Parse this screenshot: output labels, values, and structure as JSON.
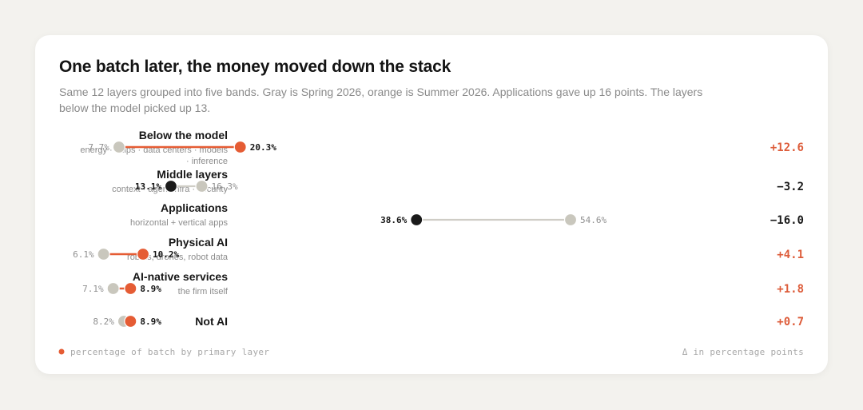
{
  "title": "One batch later, the money moved down the stack",
  "subtitle": "Same 12 layers grouped into five bands. Gray is Spring 2026, orange is Summer 2026. Applications gave up 16 points. The layers below the model picked up 13.",
  "colors": {
    "spring": "#c9c7bd",
    "summer_increase": "#e55c34",
    "summer_decrease": "#1a1a1a",
    "delta_positive": "#dd5c3a",
    "delta_negative": "#1a1a1a",
    "connector_decrease": "#cfcdc6"
  },
  "chart_data": {
    "type": "dumbbell",
    "series_meaning": [
      "Spring 2026",
      "Summer 2026"
    ],
    "xlim": [
      0,
      60
    ],
    "rows": [
      {
        "name": "Below the model",
        "sub": [
          "energy · chips · data centers · models",
          "· inference"
        ],
        "spring": 7.7,
        "summer": 20.3,
        "spring_label": "7.7%",
        "summer_label": "20.3%",
        "delta": "+12.6"
      },
      {
        "name": "Middle layers",
        "sub": [
          "context · agent infra · security"
        ],
        "spring": 16.3,
        "summer": 13.1,
        "spring_label": "16.3%",
        "summer_label": "13.1%",
        "delta": "−3.2"
      },
      {
        "name": "Applications",
        "sub": [
          "horizontal + vertical apps"
        ],
        "spring": 54.6,
        "summer": 38.6,
        "spring_label": "54.6%",
        "summer_label": "38.6%",
        "delta": "−16.0"
      },
      {
        "name": "Physical AI",
        "sub": [
          "robots, drones, robot data"
        ],
        "spring": 6.1,
        "summer": 10.2,
        "spring_label": "6.1%",
        "summer_label": "10.2%",
        "delta": "+4.1"
      },
      {
        "name": "AI-native services",
        "sub": [
          "the firm itself"
        ],
        "spring": 7.1,
        "summer": 8.9,
        "spring_label": "7.1%",
        "summer_label": "8.9%",
        "delta": "+1.8"
      },
      {
        "name": "Not AI",
        "sub": [],
        "spring": 8.2,
        "summer": 8.9,
        "spring_label": "8.2%",
        "summer_label": "8.9%",
        "delta": "+0.7"
      }
    ]
  },
  "footer": {
    "legend_text": "percentage of batch by primary layer",
    "delta_note": "Δ in percentage points"
  }
}
